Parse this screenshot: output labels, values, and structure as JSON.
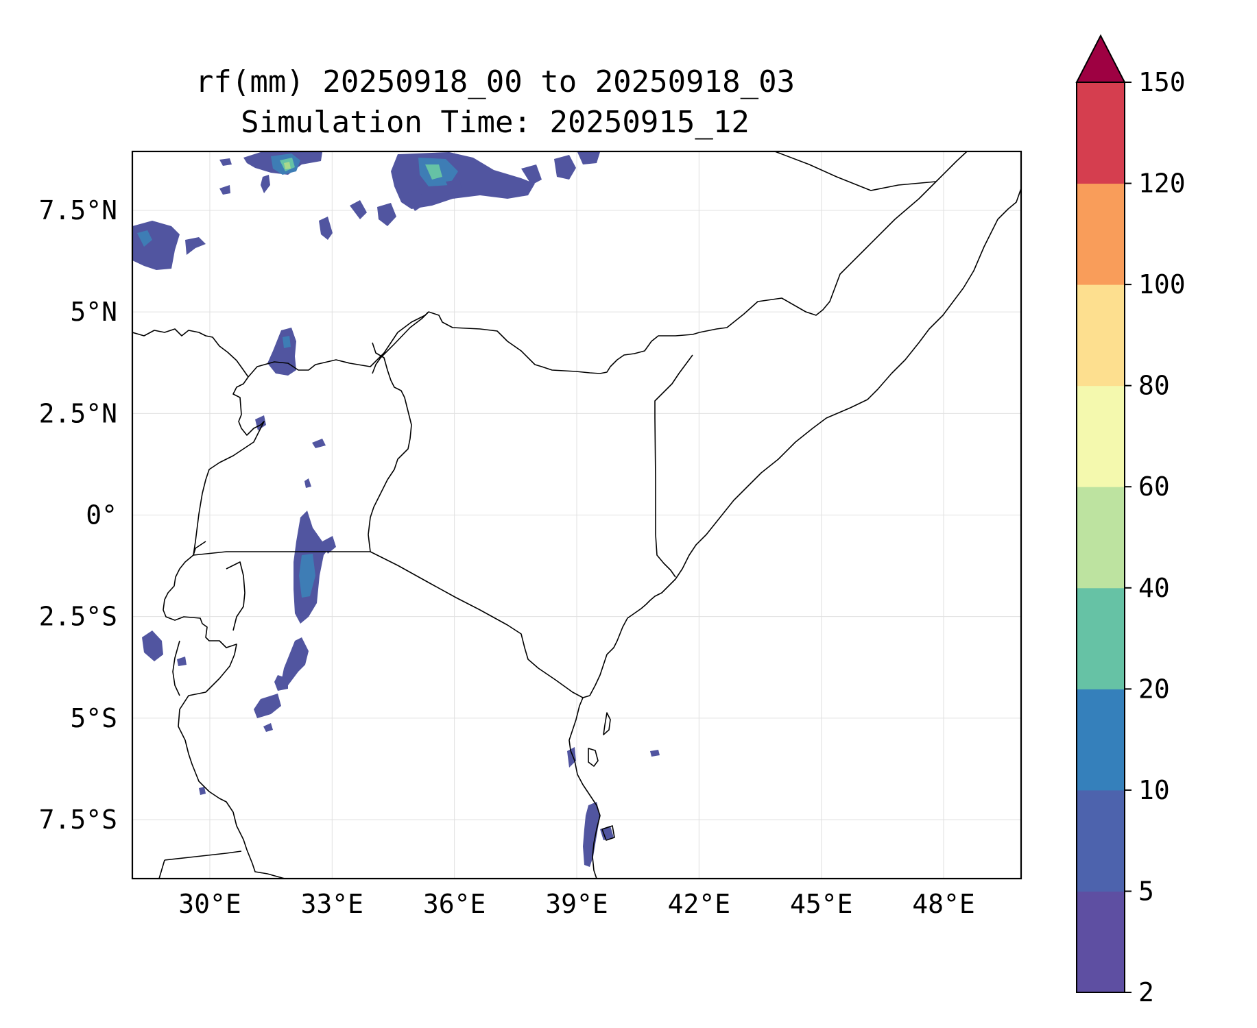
{
  "title": {
    "line1": "rf(mm) 20250918_00 to 20250918_03",
    "line2": "Simulation Time: 20250915_12"
  },
  "map": {
    "extent": {
      "lon_min": 28.1,
      "lon_max": 49.9,
      "lat_min": -8.95,
      "lat_max": 8.95
    },
    "lon_ticks": [
      {
        "value": 30,
        "label": "30°E"
      },
      {
        "value": 33,
        "label": "33°E"
      },
      {
        "value": 36,
        "label": "36°E"
      },
      {
        "value": 39,
        "label": "39°E"
      },
      {
        "value": 42,
        "label": "42°E"
      },
      {
        "value": 45,
        "label": "45°E"
      },
      {
        "value": 48,
        "label": "48°E"
      }
    ],
    "lat_ticks": [
      {
        "value": 7.5,
        "label": "7.5°N"
      },
      {
        "value": 5,
        "label": "5°N"
      },
      {
        "value": 2.5,
        "label": "2.5°N"
      },
      {
        "value": 0,
        "label": "0°"
      },
      {
        "value": -2.5,
        "label": "2.5°S"
      },
      {
        "value": -5,
        "label": "5°S"
      },
      {
        "value": -7.5,
        "label": "7.5°S"
      }
    ],
    "gridlines": true
  },
  "colorbar": {
    "extend": "max",
    "extend_color": "#9e0142",
    "levels": [
      {
        "label": "2",
        "color": "#5e4fa2"
      },
      {
        "label": "5",
        "color": "#4d63ad"
      },
      {
        "label": "10",
        "color": "#3580bb"
      },
      {
        "label": "20",
        "color": "#66c2a5"
      },
      {
        "label": "40",
        "color": "#bde3a0"
      },
      {
        "label": "60",
        "color": "#f4f9ae"
      },
      {
        "label": "80",
        "color": "#fddf8f"
      },
      {
        "label": "100",
        "color": "#f99d5a"
      },
      {
        "label": "120",
        "color": "#d53e4f"
      },
      {
        "label": "150",
        "color": ""
      }
    ]
  },
  "rain_colors": {
    "low": "#5155a0",
    "mid": "#3e7db5",
    "high": "#66c2a5",
    "top": "#a9d98c"
  }
}
